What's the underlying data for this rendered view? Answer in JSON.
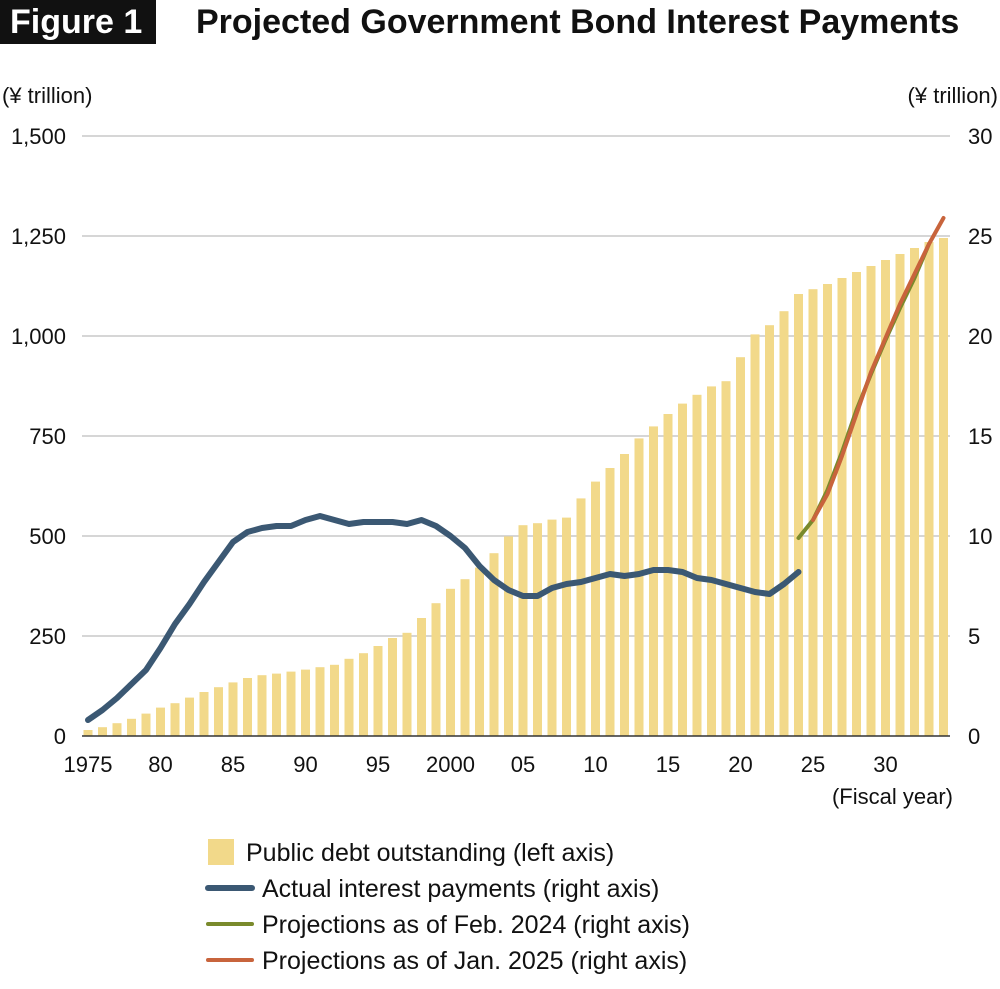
{
  "figure_label": "Figure 1",
  "chart_data": {
    "type": "bar+line",
    "title": "Projected Government Bond Interest Payments",
    "left_axis": {
      "unit": "(¥ trillion)",
      "ylim": [
        0,
        1500
      ],
      "ticks": [
        0,
        250,
        500,
        750,
        1000,
        1250,
        1500
      ],
      "tick_labels": [
        "0",
        "250",
        "500",
        "750",
        "1,000",
        "1,250",
        "1,500"
      ]
    },
    "right_axis": {
      "unit": "(¥ trillion)",
      "ylim": [
        0,
        30
      ],
      "ticks": [
        0,
        5,
        10,
        15,
        20,
        25,
        30
      ],
      "tick_labels": [
        "0",
        "5",
        "10",
        "15",
        "20",
        "25",
        "30"
      ]
    },
    "x_axis": {
      "label": "(Fiscal year)",
      "xlim": [
        1975,
        2034
      ],
      "ticks": [
        1975,
        1980,
        1985,
        1990,
        1995,
        2000,
        2005,
        2010,
        2015,
        2020,
        2025,
        2030
      ],
      "tick_labels": [
        "1975",
        "80",
        "85",
        "90",
        "95",
        "2000",
        "05",
        "10",
        "15",
        "20",
        "25",
        "30"
      ]
    },
    "bars": {
      "name": "Public debt outstanding (left axis)",
      "color": "#f2d98a",
      "start_year": 1975,
      "values": [
        15,
        22,
        32,
        43,
        56,
        71,
        82,
        96,
        110,
        122,
        134,
        145,
        152,
        156,
        161,
        166,
        172,
        178,
        193,
        207,
        225,
        245,
        258,
        295,
        332,
        368,
        392,
        421,
        457,
        499,
        527,
        532,
        541,
        546,
        594,
        636,
        670,
        705,
        744,
        774,
        805,
        831,
        853,
        874,
        887,
        947,
        1004,
        1027,
        1062,
        1105,
        1117,
        1130,
        1145,
        1160,
        1175,
        1190,
        1205,
        1220,
        1235,
        1245
      ]
    },
    "series": [
      {
        "name": "Actual interest payments (right axis)",
        "axis": "right",
        "color": "#3b5873",
        "x": [
          1975,
          1976,
          1977,
          1978,
          1979,
          1980,
          1981,
          1982,
          1983,
          1984,
          1985,
          1986,
          1987,
          1988,
          1989,
          1990,
          1991,
          1992,
          1993,
          1994,
          1995,
          1996,
          1997,
          1998,
          1999,
          2000,
          2001,
          2002,
          2003,
          2004,
          2005,
          2006,
          2007,
          2008,
          2009,
          2010,
          2011,
          2012,
          2013,
          2014,
          2015,
          2016,
          2017,
          2018,
          2019,
          2020,
          2021,
          2022,
          2023,
          2024
        ],
        "values": [
          0.8,
          1.3,
          1.9,
          2.6,
          3.3,
          4.4,
          5.6,
          6.6,
          7.7,
          8.7,
          9.7,
          10.2,
          10.4,
          10.5,
          10.5,
          10.8,
          11.0,
          10.8,
          10.6,
          10.7,
          10.7,
          10.7,
          10.6,
          10.8,
          10.5,
          10.0,
          9.4,
          8.5,
          7.8,
          7.3,
          7.0,
          7.0,
          7.4,
          7.6,
          7.7,
          7.9,
          8.1,
          8.0,
          8.1,
          8.3,
          8.3,
          8.2,
          7.9,
          7.8,
          7.6,
          7.4,
          7.2,
          7.1,
          7.6,
          8.2
        ]
      },
      {
        "name": "Projections as of Feb. 2024 (right axis)",
        "axis": "right",
        "color": "#7a8a2c",
        "x": [
          2024,
          2025,
          2026,
          2027,
          2028,
          2029,
          2030,
          2031,
          2032,
          2033
        ],
        "values": [
          9.9,
          10.8,
          12.3,
          14.2,
          16.3,
          18.1,
          19.8,
          21.4,
          22.9,
          24.6
        ]
      },
      {
        "name": "Projections as of Jan. 2025 (right axis)",
        "axis": "right",
        "color": "#c8643c",
        "x": [
          2025,
          2026,
          2027,
          2028,
          2029,
          2030,
          2031,
          2032,
          2033,
          2034
        ],
        "values": [
          10.8,
          12.1,
          14.0,
          16.1,
          18.2,
          19.9,
          21.6,
          23.1,
          24.6,
          25.9
        ]
      }
    ],
    "legend": [
      {
        "label": "Public debt outstanding (left axis)",
        "kind": "bar",
        "color": "#f2d98a"
      },
      {
        "label": "Actual interest payments (right axis)",
        "kind": "line",
        "color": "#3b5873"
      },
      {
        "label": "Projections as of Feb. 2024 (right axis)",
        "kind": "line",
        "color": "#7a8a2c"
      },
      {
        "label": "Projections as of Jan. 2025 (right axis)",
        "kind": "line",
        "color": "#c8643c"
      }
    ],
    "legend_position": "bottom",
    "grid": true
  }
}
